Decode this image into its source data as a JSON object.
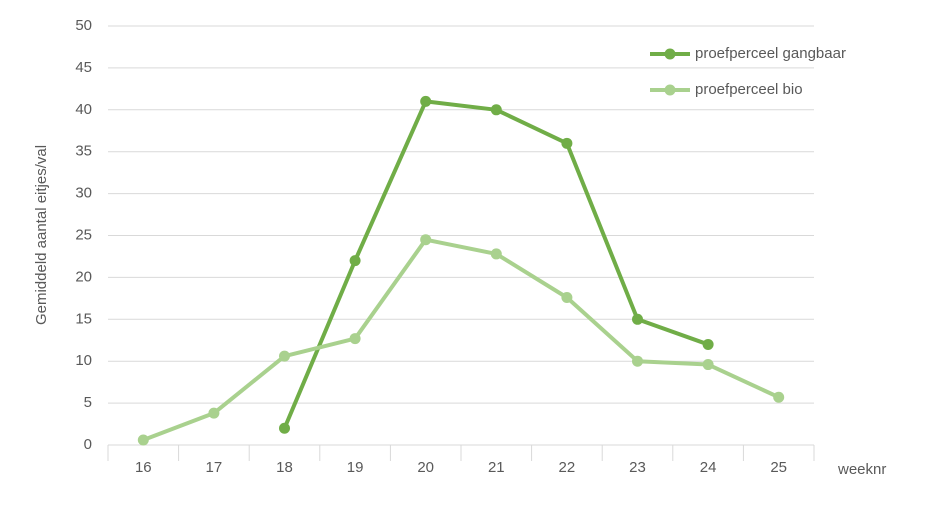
{
  "chart_data": {
    "type": "line",
    "x_label": "weeknr",
    "y_label": "Gemiddeld aantal eitjes/val",
    "categories": [
      "16",
      "17",
      "18",
      "19",
      "20",
      "21",
      "22",
      "23",
      "24",
      "25"
    ],
    "series": [
      {
        "name": "proefperceel gangbaar",
        "color": "#70ad47",
        "values": [
          null,
          null,
          2,
          22,
          41,
          40,
          36,
          15,
          12,
          null
        ]
      },
      {
        "name": "proefperceel bio",
        "color": "#a9d18e",
        "values": [
          0.6,
          3.8,
          10.6,
          12.7,
          24.5,
          22.8,
          17.6,
          10,
          9.6,
          5.7
        ]
      }
    ],
    "ylim": [
      0,
      50
    ],
    "yticks": [
      0,
      5,
      10,
      15,
      20,
      25,
      30,
      35,
      40,
      45,
      50
    ],
    "grid": true,
    "legend": "top-right"
  }
}
